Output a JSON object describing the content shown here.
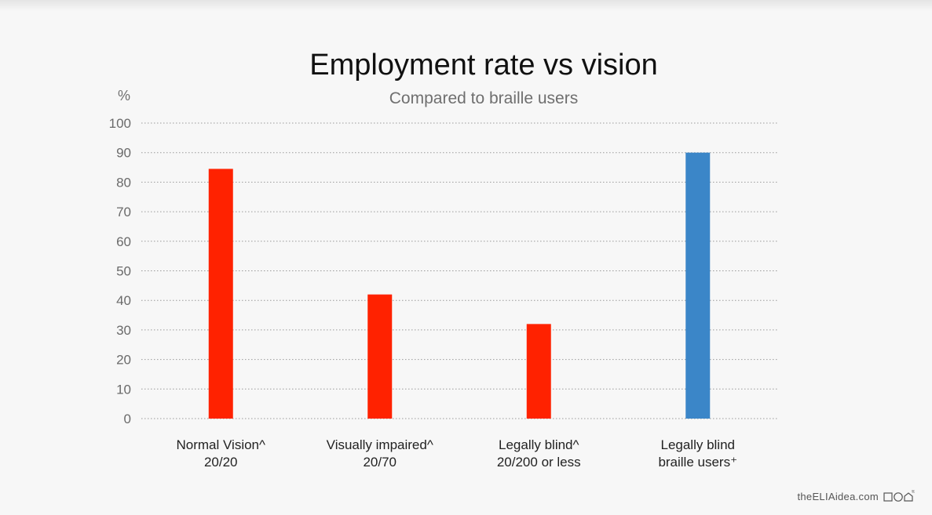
{
  "chart_data": {
    "type": "bar",
    "title": "Employment rate vs vision",
    "subtitle": "Compared to braille users",
    "ylabel": "%",
    "xlabel": "",
    "ylim": [
      0,
      100
    ],
    "yticks": [
      0,
      10,
      20,
      30,
      40,
      50,
      60,
      70,
      80,
      90,
      100
    ],
    "grid": true,
    "categories": [
      {
        "line1": "Normal Vision^",
        "line2": "20/20"
      },
      {
        "line1": "Visually impaired^",
        "line2": "20/70"
      },
      {
        "line1": "Legally blind^",
        "line2": "20/200 or less"
      },
      {
        "line1": "Legally blind",
        "line2": "braille users⁺"
      }
    ],
    "values": [
      84.5,
      42,
      32,
      90
    ],
    "colors": [
      "#ff2200",
      "#ff2200",
      "#ff2200",
      "#3b86c8"
    ]
  },
  "footer": {
    "brand_text": "theELIAidea.com",
    "brand_mark_icon": "square-circle-house-icon",
    "registered_mark": "®"
  }
}
